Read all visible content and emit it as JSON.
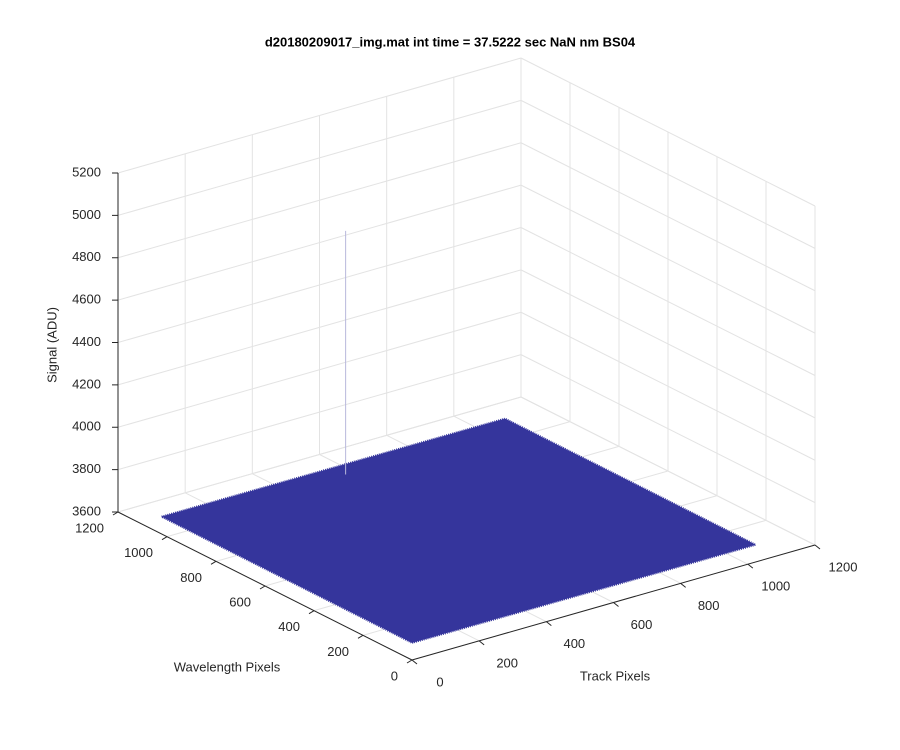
{
  "chart_data": {
    "type": "surface3d",
    "title": "d20180209017_img.mat int time = 37.5222 sec  NaN nm BS04",
    "xlabel": "Track Pixels",
    "ylabel": "Wavelength Pixels",
    "zlabel": "Signal (ADU)",
    "xlim": [
      0,
      1200
    ],
    "ylim": [
      0,
      1200
    ],
    "zlim": [
      3600,
      5200
    ],
    "xticks": [
      0,
      200,
      400,
      600,
      800,
      1000,
      1200
    ],
    "yticks": [
      0,
      200,
      400,
      600,
      800,
      1000,
      1200
    ],
    "zticks": [
      3600,
      3800,
      4000,
      4200,
      4400,
      4600,
      4800,
      5000,
      5200
    ],
    "grid": true,
    "color": "#35359c",
    "x": [
      1,
      1024
    ],
    "y": [
      1,
      1024
    ],
    "z": [
      [
        3680,
        3680
      ],
      [
        3680,
        3680
      ]
    ],
    "spike": {
      "x": 510,
      "y": 970,
      "z": 4830
    }
  }
}
